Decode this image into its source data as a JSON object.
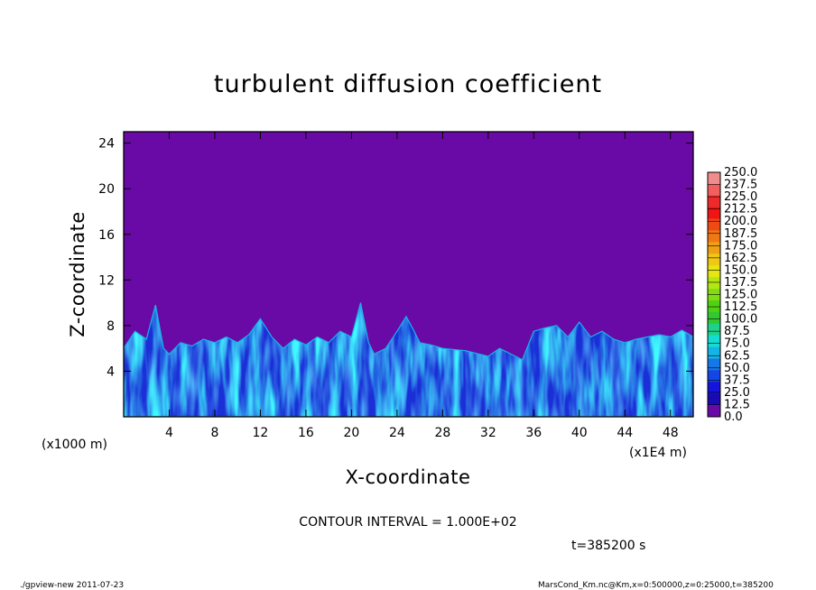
{
  "chart_data": {
    "type": "heatmap",
    "title": "turbulent diffusion coefficient",
    "xlabel": "X-coordinate",
    "ylabel": "Z-coordinate",
    "x_scale_label": "(x1E4 m)",
    "y_scale_label": "(x1000 m)",
    "xlim": [
      0,
      50
    ],
    "ylim": [
      0,
      25
    ],
    "x_ticks": [
      4,
      8,
      12,
      16,
      20,
      24,
      28,
      32,
      36,
      40,
      44,
      48
    ],
    "y_ticks": [
      4,
      8,
      12,
      16,
      20,
      24
    ],
    "colorbar": {
      "levels": [
        "250.0",
        "237.5",
        "225.0",
        "212.5",
        "200.0",
        "187.5",
        "175.0",
        "162.5",
        "150.0",
        "137.5",
        "125.0",
        "112.5",
        "100.0",
        "87.5",
        "75.0",
        "62.5",
        "50.0",
        "37.5",
        "25.0",
        "12.5",
        "0.0"
      ],
      "colors": [
        "#f08c8c",
        "#f25f5f",
        "#ee2a2a",
        "#f01414",
        "#f04a14",
        "#f07814",
        "#f0a014",
        "#f0c814",
        "#e6e614",
        "#b4e614",
        "#82dc14",
        "#50d214",
        "#32c832",
        "#1ed28c",
        "#14dcd2",
        "#14b4e6",
        "#1478e6",
        "#1446e6",
        "#1414dc",
        "#1a0ab4",
        "#6a0aa6"
      ]
    },
    "field_profile": {
      "x": [
        0,
        1,
        2,
        2.8,
        3.5,
        4,
        5,
        6,
        7,
        8,
        9,
        10,
        11,
        12,
        13,
        14,
        15,
        16,
        17,
        18,
        19,
        20,
        20.8,
        21.5,
        22,
        23,
        24,
        24.8,
        25.5,
        26,
        27,
        28,
        30,
        32,
        33,
        34,
        35,
        36,
        37,
        38,
        39,
        40,
        41,
        42,
        43,
        44,
        45,
        46,
        47,
        48,
        49,
        50
      ],
      "top_km": [
        6,
        7.5,
        6.8,
        9.8,
        6,
        5.5,
        6.5,
        6.2,
        6.8,
        6.5,
        7,
        6.5,
        7.2,
        8.6,
        7,
        6,
        6.8,
        6.3,
        7,
        6.5,
        7.5,
        7,
        10,
        6.5,
        5.5,
        6,
        7.5,
        8.8,
        7.5,
        6.5,
        6.3,
        6,
        5.8,
        5.3,
        6,
        5.5,
        5,
        7.5,
        7.8,
        8,
        7,
        8.3,
        7,
        7.5,
        6.8,
        6.5,
        6.8,
        7,
        7.2,
        7,
        7.6,
        7
      ]
    },
    "annotations": {
      "contour_interval": "CONTOUR INTERVAL = 1.000E+02",
      "time": "t=385200 s",
      "footer_left": "./gpview-new   2011-07-23",
      "footer_right": "MarsCond_Km.nc@Km,x=0:500000,z=0:25000,t=385200"
    }
  }
}
